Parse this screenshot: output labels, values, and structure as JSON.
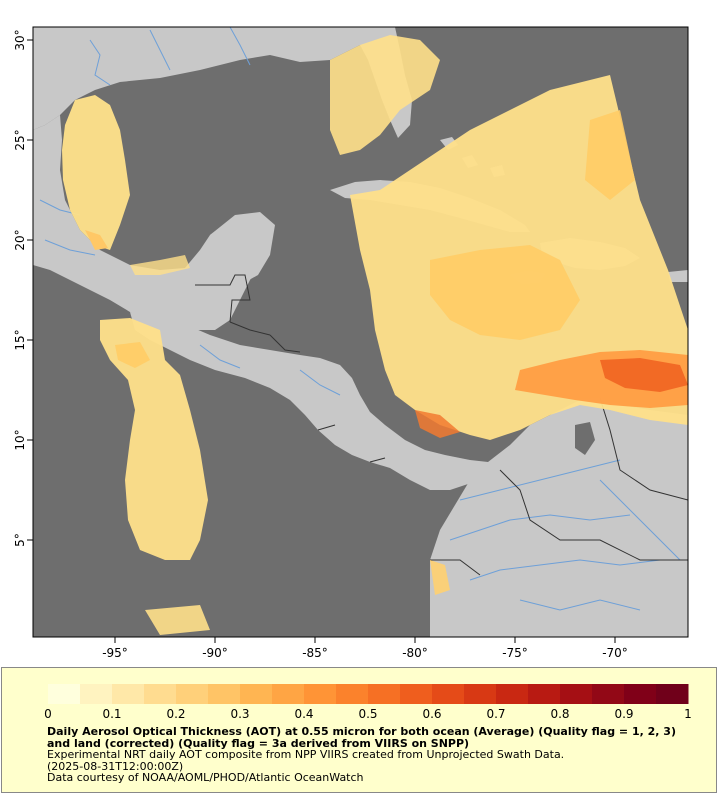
{
  "map": {
    "colors": {
      "ocean": "#6e6e6e",
      "land": "#c8c8c8",
      "rivers": "#6ea0d8",
      "borders": "#333333",
      "aot_low": "#fff2b0",
      "aot_mid": "#ffc860",
      "aot_high": "#f06020"
    },
    "x_ticks": [
      "-95°",
      "-90°",
      "-85°",
      "-80°",
      "-75°",
      "-70°"
    ],
    "y_ticks": [
      "30°",
      "25°",
      "20°",
      "15°",
      "10°",
      "5°"
    ]
  },
  "colorbar": {
    "tick_labels": [
      "0",
      "0.1",
      "0.2",
      "0.3",
      "0.4",
      "0.5",
      "0.6",
      "0.7",
      "0.8",
      "0.9",
      "1"
    ],
    "colors": [
      "#ffffdd",
      "#fff3c0",
      "#ffe8a8",
      "#ffdc90",
      "#ffd07a",
      "#ffc466",
      "#ffb552",
      "#ffa544",
      "#ff9436",
      "#fb822c",
      "#f67024",
      "#ef5e1e",
      "#e54b18",
      "#d83914",
      "#c92812",
      "#b81a12",
      "#a50f14",
      "#920816",
      "#800018",
      "#70001a"
    ]
  },
  "caption": {
    "title": "Daily Aerosol Optical Thickness (AOT) at 0.55 micron for both ocean (Average) (Quality flag = 1, 2, 3) and land (corrected) (Quality flag = 3a derived from VIIRS on SNPP)",
    "line1": "Experimental NRT daily AOT composite from NPP VIIRS created from Unprojected Swath Data.",
    "line2": "(2025-08-31T12:00:00Z)",
    "line3": "Data courtesy of NOAA/AOML/PHOD/Atlantic OceanWatch"
  }
}
